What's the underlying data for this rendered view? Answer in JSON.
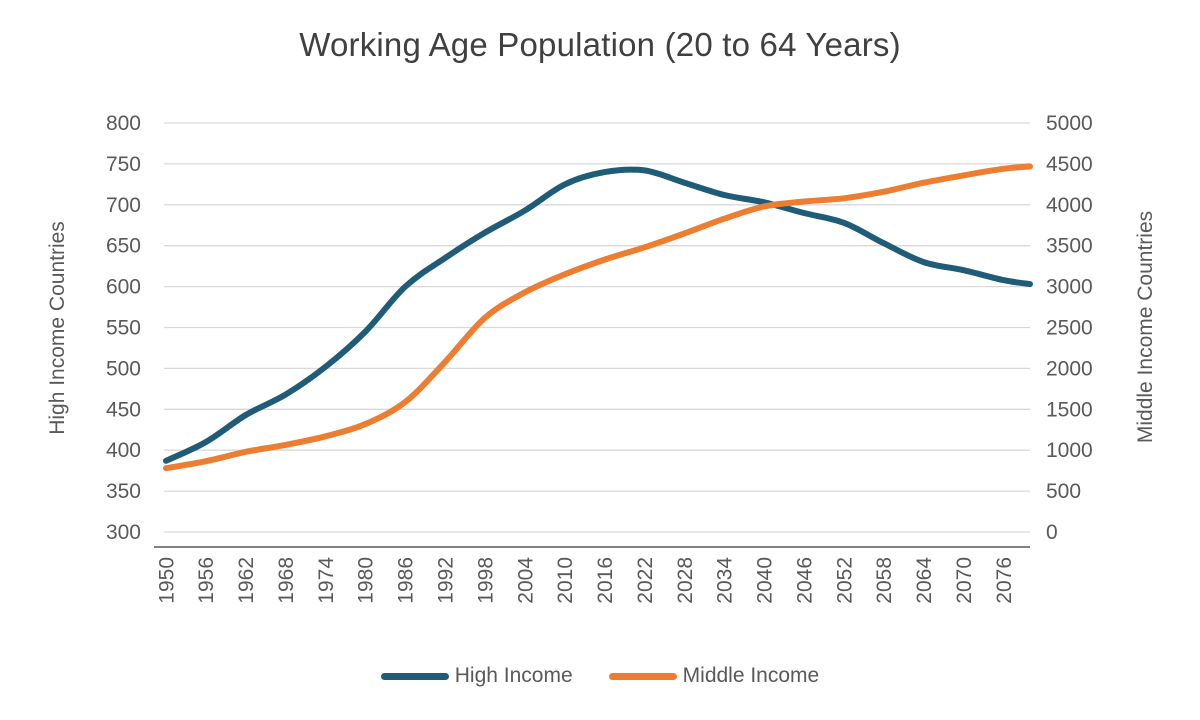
{
  "chart_data": {
    "type": "line",
    "title": "Working Age Population (20 to 64 Years)",
    "x": [
      1950,
      1956,
      1962,
      1968,
      1974,
      1980,
      1986,
      1992,
      1998,
      2004,
      2010,
      2016,
      2022,
      2028,
      2034,
      2040,
      2046,
      2052,
      2058,
      2064,
      2070,
      2076,
      2080
    ],
    "x_tick_labels": [
      "1950",
      "1956",
      "1962",
      "1968",
      "1974",
      "1980",
      "1986",
      "1992",
      "1998",
      "2004",
      "2010",
      "2016",
      "2022",
      "2028",
      "2034",
      "2040",
      "2046",
      "2052",
      "2058",
      "2064",
      "2070",
      "2076"
    ],
    "series": [
      {
        "name": "High Income",
        "axis": "left",
        "color": "#1F5C77",
        "values": [
          387,
          410,
          443,
          468,
          502,
          545,
          600,
          635,
          666,
          693,
          725,
          740,
          742,
          727,
          712,
          703,
          690,
          678,
          653,
          630,
          620,
          608,
          603
        ]
      },
      {
        "name": "Middle Income",
        "axis": "right",
        "color": "#ED7D31",
        "values": [
          780,
          865,
          980,
          1065,
          1170,
          1320,
          1590,
          2080,
          2620,
          2930,
          3150,
          3330,
          3480,
          3650,
          3830,
          3980,
          4040,
          4080,
          4160,
          4270,
          4360,
          4440,
          4470
        ]
      }
    ],
    "left_axis": {
      "label": "High Income Countries",
      "min": 300,
      "max": 800,
      "step": 50,
      "ticks": [
        800,
        750,
        700,
        650,
        600,
        550,
        500,
        450,
        400,
        350,
        300
      ]
    },
    "right_axis": {
      "label": "Middle Income Countries",
      "min": 0,
      "max": 5000,
      "step": 500,
      "ticks": [
        5000,
        4500,
        4000,
        3500,
        3000,
        2500,
        2000,
        1500,
        1000,
        500,
        0
      ]
    },
    "legend_position": "bottom",
    "grid": true,
    "gridline_color": "#D9D9D9",
    "axis_line_color": "#808080",
    "text_color": "#595959",
    "title_color": "#404040"
  }
}
